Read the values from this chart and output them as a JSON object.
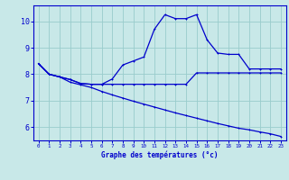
{
  "title": "",
  "xlabel": "Graphe des températures (°c)",
  "ylabel": "",
  "bg_color": "#c8e8e8",
  "plot_bg_color": "#c8e8e8",
  "bottom_bg": "#ffffff",
  "line_color": "#0000cc",
  "grid_color": "#99cccc",
  "axis_color": "#0000cc",
  "xlim": [
    -0.5,
    23.5
  ],
  "ylim": [
    5.5,
    10.6
  ],
  "yticks": [
    6,
    7,
    8,
    9,
    10
  ],
  "xticks": [
    0,
    1,
    2,
    3,
    4,
    5,
    6,
    7,
    8,
    9,
    10,
    11,
    12,
    13,
    14,
    15,
    16,
    17,
    18,
    19,
    20,
    21,
    22,
    23
  ],
  "line1_x": [
    0,
    1,
    2,
    3,
    4,
    5,
    6,
    7,
    8,
    9,
    10,
    11,
    12,
    13,
    14,
    15,
    16,
    17,
    18,
    19,
    20,
    21,
    22,
    23
  ],
  "line1_y": [
    8.4,
    8.0,
    7.9,
    7.8,
    7.65,
    7.62,
    7.62,
    7.82,
    8.35,
    8.5,
    8.65,
    9.7,
    10.25,
    10.1,
    10.1,
    10.25,
    9.3,
    8.8,
    8.75,
    8.75,
    8.2,
    8.2,
    8.2,
    8.2
  ],
  "line2_x": [
    0,
    1,
    2,
    3,
    4,
    5,
    6,
    7,
    8,
    9,
    10,
    11,
    12,
    13,
    14,
    15,
    16,
    17,
    18,
    19,
    20,
    21,
    22,
    23
  ],
  "line2_y": [
    8.4,
    8.0,
    7.9,
    7.8,
    7.65,
    7.62,
    7.62,
    7.62,
    7.62,
    7.62,
    7.62,
    7.62,
    7.62,
    7.62,
    7.62,
    8.05,
    8.05,
    8.05,
    8.05,
    8.05,
    8.05,
    8.05,
    8.05,
    8.05
  ],
  "line3_x": [
    0,
    1,
    2,
    3,
    4,
    5,
    6,
    7,
    8,
    9,
    10,
    11,
    12,
    13,
    14,
    15,
    16,
    17,
    18,
    19,
    20,
    21,
    22,
    23
  ],
  "line3_y": [
    8.4,
    8.0,
    7.9,
    7.7,
    7.6,
    7.5,
    7.35,
    7.22,
    7.1,
    6.98,
    6.87,
    6.76,
    6.65,
    6.54,
    6.44,
    6.34,
    6.24,
    6.14,
    6.05,
    5.96,
    5.9,
    5.82,
    5.75,
    5.65
  ]
}
